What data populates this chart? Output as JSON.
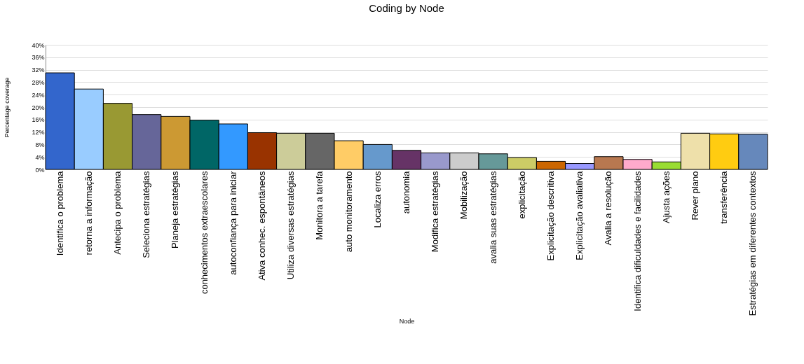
{
  "chart_data": {
    "type": "bar",
    "title": "Coding by Node",
    "xlabel": "Node",
    "ylabel": "Percentage coverage",
    "categories": [
      "Identifica o problema",
      "retorna a informação",
      "Antecipa o problema",
      "Seleciona estratégias",
      "Planeja estratégias",
      "conhecimentos extraescolares",
      "autoconfiança para iniciar",
      "Ativa conhec. espontâneos",
      "Utiliza diversas estratégias",
      "Monitora a tarefa",
      "auto monitoramento",
      "Localiza erros",
      "autonomia",
      "Modifica estratégias",
      "Mobilização",
      "avalia suas estratégias",
      "explicitação",
      "Explicitação descritiva",
      "Explicitação avaliativa",
      "Avalia a resolução",
      "Identifica dificuldades e facilidades",
      "Ajusta ações",
      "Rever plano",
      "transferência",
      "Estratégias em diferentes contextos"
    ],
    "values": [
      31.0,
      25.8,
      21.2,
      17.6,
      17.0,
      15.8,
      14.6,
      11.8,
      11.6,
      11.6,
      9.2,
      8.0,
      6.1,
      5.3,
      5.3,
      5.0,
      3.8,
      2.6,
      1.9,
      4.1,
      3.2,
      2.4,
      11.6,
      11.4,
      11.3
    ],
    "colors": [
      "#3366cc",
      "#99ccff",
      "#999933",
      "#666699",
      "#cc9933",
      "#006666",
      "#3399ff",
      "#993300",
      "#cccc99",
      "#666666",
      "#ffcc66",
      "#6699cc",
      "#663366",
      "#9999cc",
      "#cccccc",
      "#669999",
      "#cccc66",
      "#cc6600",
      "#9999ff",
      "#b87850",
      "#ffaacc",
      "#99dd33",
      "#eee0aa",
      "#ffcc11",
      "#6688bb"
    ],
    "ylim": [
      0,
      40
    ],
    "yticks": [
      {
        "value": 0,
        "label": "0%"
      },
      {
        "value": 4,
        "label": "4%"
      },
      {
        "value": 8,
        "label": "8%"
      },
      {
        "value": 12,
        "label": "12%"
      },
      {
        "value": 16,
        "label": "16%"
      },
      {
        "value": 20,
        "label": "20%"
      },
      {
        "value": 24,
        "label": "24%"
      },
      {
        "value": 28,
        "label": "28%"
      },
      {
        "value": 32,
        "label": "32%"
      },
      {
        "value": 36,
        "label": "36%"
      },
      {
        "value": 40,
        "label": "40%"
      }
    ],
    "grid": "y"
  }
}
